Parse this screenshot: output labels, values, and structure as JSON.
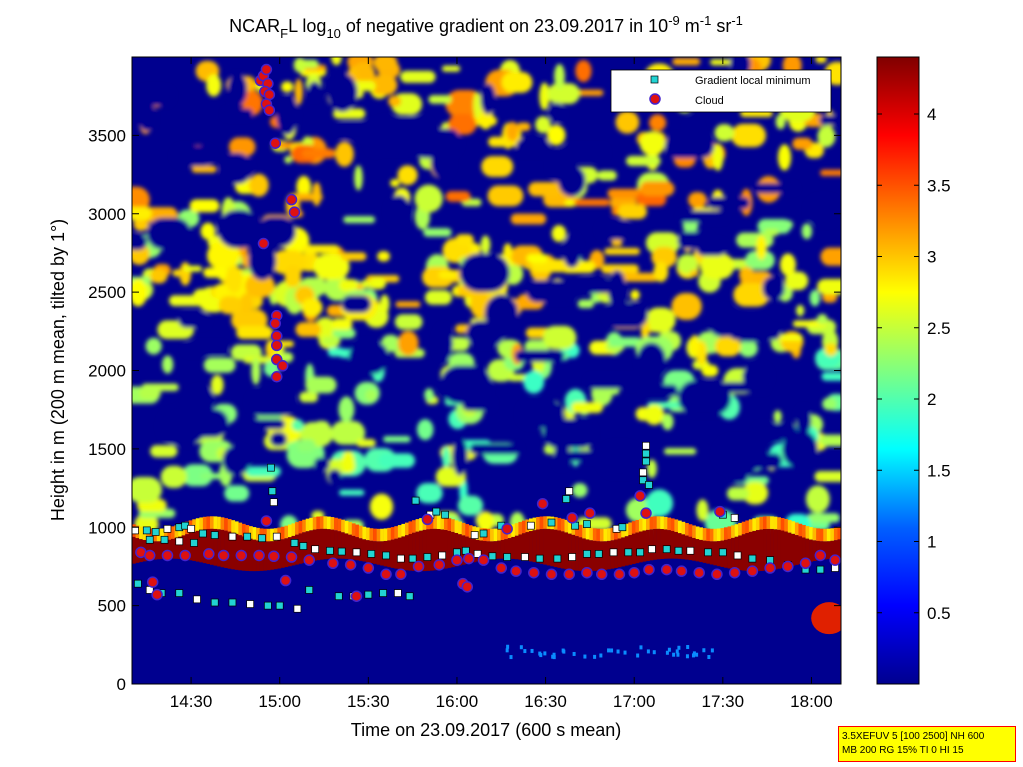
{
  "chart_data": {
    "type": "heatmap",
    "title": {
      "part1": "NCAR",
      "sub1": "F",
      "part2": "L log",
      "sub2": "10",
      "part3": " of negative gradient on 23.09.2017 in 10",
      "sup1": "-9",
      "part4": " m",
      "sup2": "-1",
      "part5": " sr",
      "sup3": "-1"
    },
    "xlabel": "Time on 23.09.2017 (600 s mean)",
    "ylabel": "Height in m (200 m mean, tilted by 1°)",
    "x_range_minutes": [
      850,
      1090
    ],
    "y_range": [
      0,
      4000
    ],
    "x_ticks": [
      {
        "minute": 870,
        "label": "14:30"
      },
      {
        "minute": 900,
        "label": "15:00"
      },
      {
        "minute": 930,
        "label": "15:30"
      },
      {
        "minute": 960,
        "label": "16:00"
      },
      {
        "minute": 990,
        "label": "16:30"
      },
      {
        "minute": 1020,
        "label": "17:00"
      },
      {
        "minute": 1050,
        "label": "17:30"
      },
      {
        "minute": 1080,
        "label": "18:00"
      }
    ],
    "y_ticks": [
      {
        "value": 0,
        "label": "0"
      },
      {
        "value": 500,
        "label": "500"
      },
      {
        "value": 1000,
        "label": "1000"
      },
      {
        "value": 1500,
        "label": "1500"
      },
      {
        "value": 2000,
        "label": "2000"
      },
      {
        "value": 2500,
        "label": "2500"
      },
      {
        "value": 3000,
        "label": "3000"
      },
      {
        "value": 3500,
        "label": "3500"
      }
    ],
    "colorbar": {
      "colormap": "jet",
      "range": [
        0,
        4.4
      ],
      "ticks": [
        {
          "value": 0.5,
          "label": "0.5"
        },
        {
          "value": 1,
          "label": "1"
        },
        {
          "value": 1.5,
          "label": "1.5"
        },
        {
          "value": 2,
          "label": "2"
        },
        {
          "value": 2.5,
          "label": "2.5"
        },
        {
          "value": 3,
          "label": "3"
        },
        {
          "value": 3.5,
          "label": "3.5"
        },
        {
          "value": 4,
          "label": "4"
        }
      ]
    },
    "legend": {
      "placement": "top-right",
      "entries": [
        {
          "label": "Gradient local minimum",
          "marker": "square",
          "color": "#22d3d3"
        },
        {
          "label": "Cloud",
          "marker": "circle",
          "color": "#dd1111"
        }
      ]
    },
    "series": [
      {
        "name": "Cloud",
        "points": [
          [
            893.5,
            3850
          ],
          [
            894.5,
            3880
          ],
          [
            895.5,
            3920
          ],
          [
            896,
            3830
          ],
          [
            895,
            3780
          ],
          [
            896.5,
            3760
          ],
          [
            895.5,
            3700
          ],
          [
            896.5,
            3660
          ],
          [
            898.5,
            3450
          ],
          [
            894.5,
            2810
          ],
          [
            899,
            2350
          ],
          [
            898.5,
            2300
          ],
          [
            899,
            2220
          ],
          [
            899,
            2160
          ],
          [
            899,
            2070
          ],
          [
            901,
            2030
          ],
          [
            899,
            1960
          ],
          [
            904,
            3090
          ],
          [
            905,
            3010
          ],
          [
            895.5,
            1040
          ],
          [
            950,
            1050
          ],
          [
            977,
            990
          ],
          [
            989,
            1150
          ],
          [
            999,
            1060
          ],
          [
            1005,
            1090
          ],
          [
            1024,
            1090
          ],
          [
            1022,
            1200
          ],
          [
            1049,
            1100
          ],
          [
            853,
            840
          ],
          [
            856,
            820
          ],
          [
            862,
            820
          ],
          [
            868,
            820
          ],
          [
            876,
            830
          ],
          [
            881,
            820
          ],
          [
            887,
            820
          ],
          [
            893,
            820
          ],
          [
            898,
            815
          ],
          [
            904,
            810
          ],
          [
            910,
            790
          ],
          [
            918,
            770
          ],
          [
            924,
            760
          ],
          [
            930,
            740
          ],
          [
            936,
            700
          ],
          [
            941,
            700
          ],
          [
            947,
            750
          ],
          [
            954,
            760
          ],
          [
            960,
            790
          ],
          [
            964,
            800
          ],
          [
            969,
            790
          ],
          [
            975,
            740
          ],
          [
            980,
            720
          ],
          [
            986,
            710
          ],
          [
            992,
            700
          ],
          [
            998,
            700
          ],
          [
            1004,
            710
          ],
          [
            1009,
            700
          ],
          [
            1015,
            700
          ],
          [
            1020,
            710
          ],
          [
            1025,
            730
          ],
          [
            1031,
            730
          ],
          [
            1036,
            720
          ],
          [
            1042,
            710
          ],
          [
            1048,
            700
          ],
          [
            1054,
            710
          ],
          [
            1060,
            720
          ],
          [
            1066,
            740
          ],
          [
            1072,
            750
          ],
          [
            1078,
            770
          ],
          [
            1083,
            820
          ],
          [
            1088,
            790
          ],
          [
            857,
            650
          ],
          [
            858.5,
            570
          ],
          [
            926,
            560
          ],
          [
            962,
            640
          ],
          [
            963.5,
            620
          ],
          [
            902,
            660
          ]
        ]
      },
      {
        "name": "Gradient local minimum",
        "points": [
          [
            851,
            980
          ],
          [
            855,
            980
          ],
          [
            858,
            970
          ],
          [
            862,
            990
          ],
          [
            866,
            1000
          ],
          [
            868,
            1010
          ],
          [
            870,
            990
          ],
          [
            874,
            960
          ],
          [
            878,
            950
          ],
          [
            884,
            940
          ],
          [
            889,
            940
          ],
          [
            894,
            930
          ],
          [
            899,
            940
          ],
          [
            905,
            900
          ],
          [
            908,
            880
          ],
          [
            912,
            860
          ],
          [
            917,
            850
          ],
          [
            921,
            845
          ],
          [
            926,
            840
          ],
          [
            931,
            830
          ],
          [
            936,
            820
          ],
          [
            941,
            800
          ],
          [
            945,
            800
          ],
          [
            950,
            810
          ],
          [
            955,
            820
          ],
          [
            960,
            840
          ],
          [
            963,
            850
          ],
          [
            967,
            830
          ],
          [
            972,
            815
          ],
          [
            977,
            810
          ],
          [
            983,
            810
          ],
          [
            988,
            800
          ],
          [
            994,
            800
          ],
          [
            999,
            810
          ],
          [
            1004,
            830
          ],
          [
            1008,
            830
          ],
          [
            1013,
            840
          ],
          [
            1018,
            840
          ],
          [
            1022,
            840
          ],
          [
            1026,
            860
          ],
          [
            1031,
            860
          ],
          [
            1035,
            850
          ],
          [
            1039,
            850
          ],
          [
            1045,
            840
          ],
          [
            1050,
            840
          ],
          [
            1055,
            820
          ],
          [
            1060,
            800
          ],
          [
            1066,
            790
          ],
          [
            1072,
            760
          ],
          [
            1078,
            730
          ],
          [
            1083,
            730
          ],
          [
            1088,
            740
          ],
          [
            856,
            920
          ],
          [
            861,
            920
          ],
          [
            866,
            910
          ],
          [
            871,
            900
          ],
          [
            852,
            640
          ],
          [
            856,
            600
          ],
          [
            860,
            580
          ],
          [
            866,
            580
          ],
          [
            872,
            540
          ],
          [
            878,
            520
          ],
          [
            884,
            520
          ],
          [
            890,
            510
          ],
          [
            896,
            500
          ],
          [
            900,
            500
          ],
          [
            906,
            480
          ],
          [
            910,
            600
          ],
          [
            920,
            560
          ],
          [
            925,
            560
          ],
          [
            930,
            570
          ],
          [
            935,
            580
          ],
          [
            940,
            580
          ],
          [
            944,
            560
          ],
          [
            946,
            1170
          ],
          [
            951,
            1080
          ],
          [
            953,
            1100
          ],
          [
            956,
            1080
          ],
          [
            966,
            950
          ],
          [
            969,
            960
          ],
          [
            975,
            1010
          ],
          [
            985,
            1010
          ],
          [
            992,
            1030
          ],
          [
            997,
            1180
          ],
          [
            998,
            1230
          ],
          [
            1000,
            1010
          ],
          [
            1004,
            1020
          ],
          [
            1014,
            990
          ],
          [
            1016,
            1000
          ],
          [
            1023,
            1300
          ],
          [
            1023,
            1350
          ],
          [
            1024,
            1420
          ],
          [
            1024,
            1470
          ],
          [
            1024,
            1520
          ],
          [
            1025,
            1270
          ],
          [
            1050,
            1080
          ],
          [
            1054,
            1060
          ],
          [
            897,
            1380
          ],
          [
            897.5,
            1230
          ],
          [
            898,
            1160
          ]
        ]
      }
    ]
  },
  "settings": {
    "line1": "3.5XEFUV 5 [100 2500] NH 600",
    "line2": "MB 200 RG 15% TI 0 HI 15"
  }
}
